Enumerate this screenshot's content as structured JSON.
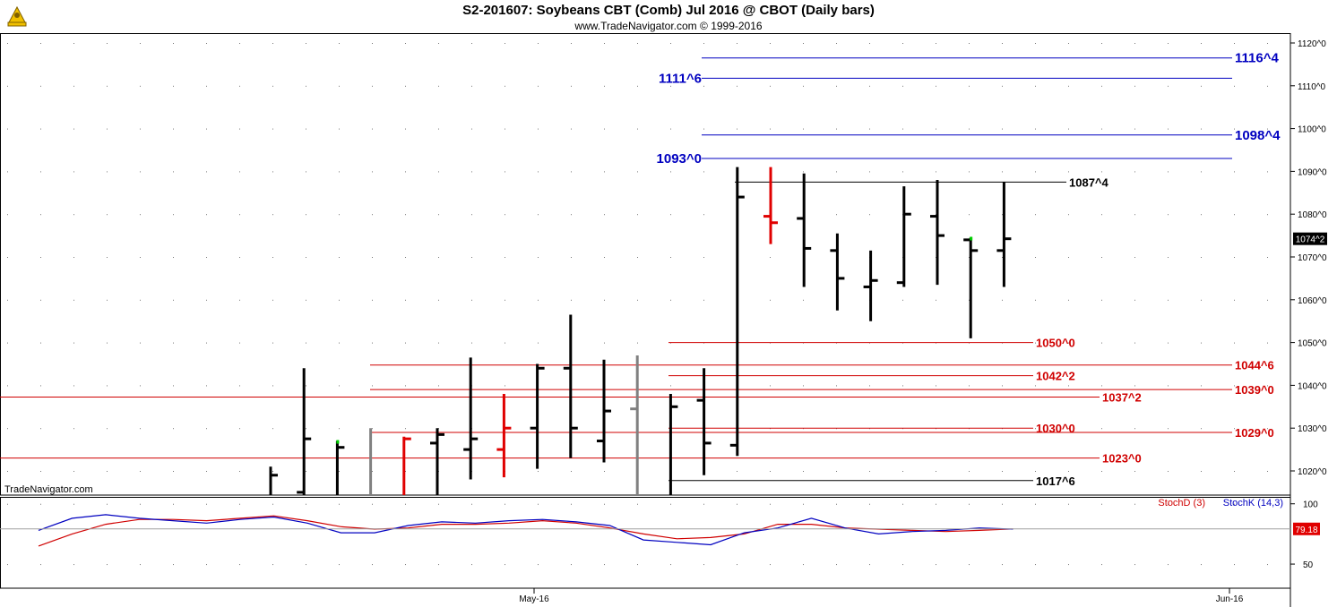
{
  "header": {
    "title": "S2-201607:  Soybeans CBT (Comb) Jul 2016 @ CBOT  (Daily bars)",
    "subtitle": "www.TradeNavigator.com © 1999-2016",
    "watermark": "TradeNavigator.com"
  },
  "colors": {
    "background": "#ffffff",
    "up_bar": "#000000",
    "down_bar": "#e00000",
    "neutral_bar": "#808080",
    "support_line": "#d00000",
    "projection_line": "#0000c0",
    "reference_line": "#000000",
    "stoch_d": "#d00000",
    "stoch_k": "#0000c0",
    "price_badge": "#000000",
    "stoch_badge": "#e00000"
  },
  "chart_data": [
    {
      "type": "ohlc",
      "unit": "cents/bushel (1/8 fractions)",
      "y_axis_ticks": [
        "1020^0",
        "1030^0",
        "1040^0",
        "1050^0",
        "1060^0",
        "1070^0",
        "1080^0",
        "1090^0",
        "1100^0",
        "1110^0",
        "1120^0"
      ],
      "y_axis_values": [
        1020,
        1030,
        1040,
        1050,
        1060,
        1070,
        1080,
        1090,
        1100,
        1110,
        1120
      ],
      "ylim": [
        1013.5,
        1121.5
      ],
      "x_labels": [
        "May-16",
        "Jun-16"
      ],
      "x_label_bar_index": [
        7,
        28
      ],
      "bars": [
        {
          "i": 0,
          "high": 1021,
          "low": 1013.5,
          "open": null,
          "close": 1019,
          "color": "black",
          "clip_bottom": true
        },
        {
          "i": 1,
          "high": 1044,
          "low": 1013.5,
          "open": 1015,
          "close": 1027.5,
          "color": "black",
          "clip_bottom": true
        },
        {
          "i": 2,
          "high": 1027,
          "low": 1013.5,
          "open": null,
          "close": 1025.5,
          "color": "black",
          "clip_bottom": true,
          "mark": "green"
        },
        {
          "i": 3,
          "high": 1030,
          "low": 1013.5,
          "open": null,
          "close": null,
          "color": "gray",
          "clip_bottom": true
        },
        {
          "i": 4,
          "high": 1028,
          "low": 1013.5,
          "open": null,
          "close": 1027.5,
          "color": "red",
          "clip_bottom": true
        },
        {
          "i": 5,
          "high": 1030,
          "low": 1013.5,
          "open": 1026.5,
          "close": 1028.5,
          "color": "black",
          "clip_bottom": true
        },
        {
          "i": 6,
          "high": 1046.5,
          "low": 1018,
          "open": 1025,
          "close": 1027.5,
          "color": "black"
        },
        {
          "i": 7,
          "high": 1038,
          "low": 1018.5,
          "open": 1025,
          "close": 1030,
          "color": "red"
        },
        {
          "i": 8,
          "high": 1045,
          "low": 1020.5,
          "open": 1030,
          "close": 1044,
          "color": "black"
        },
        {
          "i": 9,
          "high": 1056.5,
          "low": 1023,
          "open": 1044,
          "close": 1030,
          "color": "black"
        },
        {
          "i": 10,
          "high": 1046,
          "low": 1022,
          "open": 1027,
          "close": 1034,
          "color": "black"
        },
        {
          "i": 11,
          "high": 1047,
          "low": 1013.5,
          "open": 1034.5,
          "close": null,
          "color": "gray",
          "clip_bottom": true
        },
        {
          "i": 12,
          "high": 1038,
          "low": 1013.5,
          "open": null,
          "close": 1035,
          "color": "black",
          "clip_bottom": true
        },
        {
          "i": 13,
          "high": 1044,
          "low": 1019,
          "open": 1036.5,
          "close": 1026.5,
          "color": "black"
        },
        {
          "i": 14,
          "high": 1091,
          "low": 1023.5,
          "open": 1026,
          "close": 1084,
          "color": "black"
        },
        {
          "i": 15,
          "high": 1091,
          "low": 1073,
          "open": 1079.5,
          "close": 1078,
          "color": "red"
        },
        {
          "i": 16,
          "high": 1089.5,
          "low": 1063,
          "open": 1079,
          "close": 1072,
          "color": "black"
        },
        {
          "i": 17,
          "high": 1075.5,
          "low": 1057.5,
          "open": 1071.5,
          "close": 1065,
          "color": "black"
        },
        {
          "i": 18,
          "high": 1071.5,
          "low": 1055,
          "open": 1063,
          "close": 1064.5,
          "color": "black"
        },
        {
          "i": 19,
          "high": 1086.5,
          "low": 1063,
          "open": 1064,
          "close": 1080,
          "color": "black"
        },
        {
          "i": 20,
          "high": 1088,
          "low": 1063.5,
          "open": 1079.5,
          "close": 1075,
          "color": "black"
        },
        {
          "i": 21,
          "high": 1074.5,
          "low": 1051,
          "open": 1074,
          "close": 1071.5,
          "color": "black",
          "mark": "green"
        },
        {
          "i": 22,
          "high": 1087.5,
          "low": 1063,
          "open": 1071.5,
          "close": 1074.25,
          "color": "black"
        }
      ],
      "levels": [
        {
          "label": "1116^4",
          "value": 1116.5,
          "color": "projection",
          "start_bar": 13,
          "label_pos": "right-far"
        },
        {
          "label": "1111^6",
          "value": 1111.75,
          "color": "projection",
          "start_bar": 13,
          "label_pos": "left-start"
        },
        {
          "label": "1098^4",
          "value": 1098.5,
          "color": "projection",
          "start_bar": 13,
          "label_pos": "right-far"
        },
        {
          "label": "1093^0",
          "value": 1093,
          "color": "projection",
          "start_bar": 13,
          "label_pos": "left-start"
        },
        {
          "label": "1087^4",
          "value": 1087.5,
          "color": "reference",
          "start_bar": 14,
          "label_pos": "right-near"
        },
        {
          "label": "1050^0",
          "value": 1050,
          "color": "support",
          "start_bar": 12,
          "label_pos": "right-mid"
        },
        {
          "label": "1044^6",
          "value": 1044.75,
          "color": "support",
          "start_bar": 3,
          "label_pos": "right-far"
        },
        {
          "label": "1042^2",
          "value": 1042.25,
          "color": "support",
          "start_bar": 12,
          "label_pos": "right-mid"
        },
        {
          "label": "1039^0",
          "value": 1039,
          "color": "support",
          "start_bar": 3,
          "label_pos": "right-far"
        },
        {
          "label": "1037^2",
          "value": 1037.25,
          "color": "support",
          "start_bar": -10,
          "label_pos": "right-mid2"
        },
        {
          "label": "1030^0",
          "value": 1030,
          "color": "support",
          "start_bar": 12,
          "label_pos": "right-mid"
        },
        {
          "label": "1029^0",
          "value": 1029,
          "color": "support",
          "start_bar": 3,
          "label_pos": "right-far"
        },
        {
          "label": "1023^0",
          "value": 1023,
          "color": "support",
          "start_bar": -10,
          "label_pos": "right-mid2"
        },
        {
          "label": "1017^6",
          "value": 1017.75,
          "color": "reference",
          "start_bar": 12,
          "label_pos": "right-mid"
        }
      ],
      "last_price_badge": "1074^2"
    },
    {
      "type": "line",
      "name": "Stochastic",
      "y_axis_ticks": [
        "50",
        "100"
      ],
      "ylim": [
        30,
        105
      ],
      "series": [
        {
          "name": "StochD (3)",
          "color": "stoch_d",
          "values": [
            65,
            75,
            83,
            87,
            87,
            86,
            88,
            90,
            86,
            81,
            79,
            80,
            83,
            83,
            84,
            86,
            84,
            80,
            75,
            71,
            72,
            75,
            83,
            83,
            80,
            79,
            78,
            77,
            78,
            79.18
          ]
        },
        {
          "name": "StochK (14,3)",
          "color": "stoch_k",
          "values": [
            78,
            88,
            91,
            88,
            86,
            84,
            87,
            89,
            84,
            76,
            76,
            82,
            85,
            84,
            86,
            87,
            85,
            82,
            70,
            68,
            66,
            76,
            80,
            88,
            80,
            75,
            77,
            78,
            80,
            79
          ]
        }
      ],
      "last_value_badge": "79.18"
    }
  ]
}
